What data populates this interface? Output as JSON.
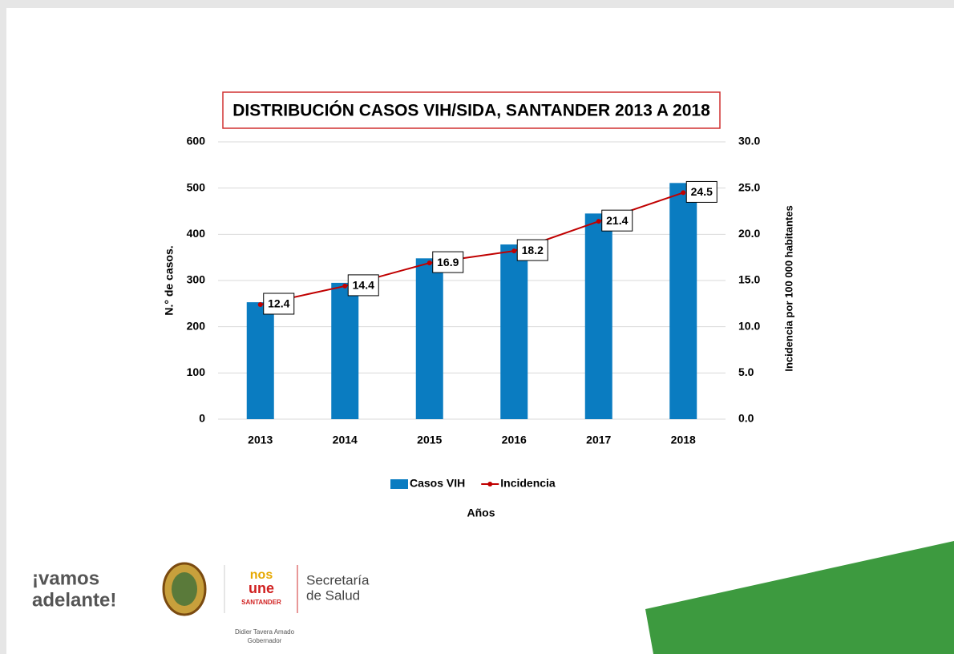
{
  "chart_data": {
    "type": "bar",
    "title": "DISTRIBUCIÓN CASOS VIH/SIDA, SANTANDER 2013 A 2018",
    "x_label": "Años",
    "y_label": "N.° de casos.",
    "y2_label": "Incidencia por 100 000 habitantes",
    "categories": [
      "2013",
      "2014",
      "2015",
      "2016",
      "2017",
      "2018"
    ],
    "series": [
      {
        "name": "Casos VIH",
        "type": "bar",
        "color": "#0a7cc1",
        "values": [
          253,
          295,
          348,
          378,
          445,
          511
        ]
      },
      {
        "name": "Incidencia",
        "type": "line",
        "axis": "y2",
        "color": "#c00000",
        "values": [
          12.4,
          14.4,
          16.9,
          18.2,
          21.4,
          24.5
        ]
      }
    ],
    "ylim": [
      0,
      600
    ],
    "yticks": [
      0,
      100,
      200,
      300,
      400,
      500,
      600
    ],
    "y2lim": [
      0,
      30
    ],
    "y2ticks": [
      {
        "value": 0,
        "label": "0.0"
      },
      {
        "value": 5,
        "label": "5.0"
      },
      {
        "value": 10,
        "label": "10.0"
      },
      {
        "value": 15,
        "label": "15.0"
      },
      {
        "value": 20,
        "label": "20.0"
      },
      {
        "value": 25,
        "label": "25.0"
      },
      {
        "value": 30,
        "label": "30.0"
      }
    ],
    "grid": true,
    "legend": "bottom"
  },
  "footer": {
    "slogan_line1": "¡vamos",
    "slogan_line2": "adelante!",
    "logo_top": "nos",
    "logo_mid": "une",
    "logo_bottom": "SANTANDER",
    "office_line1": "Secretaría",
    "office_line2": "de Salud",
    "governor_name": "Didier Tavera Amado",
    "governor_title": "Gobernador"
  }
}
